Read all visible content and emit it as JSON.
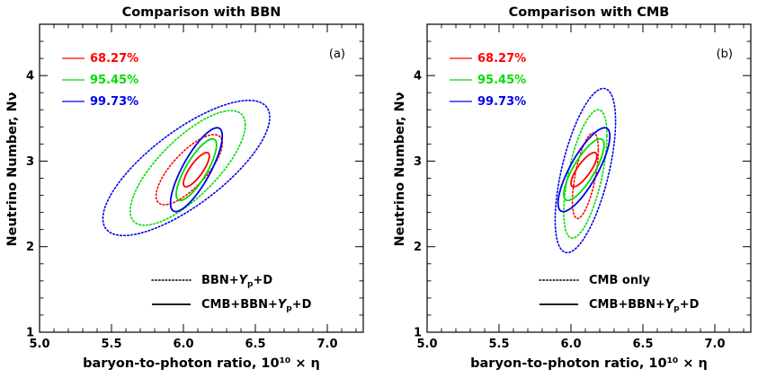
{
  "chart_data": [
    {
      "type": "contour",
      "title": "Comparison with BBN",
      "panel_label": "(a)",
      "xlabel": "baryon-to-photon ratio, 10¹⁰ × η",
      "ylabel": "Neutrino Number, Nν",
      "xlim": [
        5.0,
        7.25
      ],
      "ylim": [
        1.0,
        4.6
      ],
      "xticks": [
        5.0,
        5.5,
        6.0,
        6.5,
        7.0
      ],
      "xtick_labels": [
        "5.0",
        "5.5",
        "6.0",
        "6.5",
        "7.0"
      ],
      "yticks": [
        1,
        2,
        3,
        4
      ],
      "ytick_labels": [
        "1",
        "2",
        "3",
        "4"
      ],
      "confidence_legend": [
        {
          "label": "68.27%",
          "color": "#ff0000"
        },
        {
          "label": "95.45%",
          "color": "#00dd00"
        },
        {
          "label": "99.73%",
          "color": "#0000ee"
        }
      ],
      "style_legend": [
        {
          "label": "BBN+Yp+D",
          "style": "dotted"
        },
        {
          "label": "CMB+BBN+Yp+D",
          "style": "solid"
        }
      ],
      "series": [
        {
          "name": "BBN+Yp+D",
          "style": "dotted",
          "contours": [
            {
              "level": "68.27%",
              "color": "#ff0000",
              "cx": 6.04,
              "cy": 2.9,
              "x_halfwidth": 0.23,
              "y_halfwidth": 0.41,
              "corr": 0.75
            },
            {
              "level": "95.45%",
              "color": "#00dd00",
              "cx": 6.03,
              "cy": 2.92,
              "x_halfwidth": 0.4,
              "y_halfwidth": 0.67,
              "corr": 0.75
            },
            {
              "level": "99.73%",
              "color": "#0000ee",
              "cx": 6.02,
              "cy": 2.92,
              "x_halfwidth": 0.58,
              "y_halfwidth": 0.79,
              "corr": 0.75
            }
          ]
        },
        {
          "name": "CMB+BBN+Yp+D",
          "style": "solid",
          "contours": [
            {
              "level": "68.27%",
              "color": "#ff0000",
              "cx": 6.09,
              "cy": 2.9,
              "x_halfwidth": 0.09,
              "y_halfwidth": 0.2,
              "corr": 0.8
            },
            {
              "level": "95.45%",
              "color": "#00dd00",
              "cx": 6.09,
              "cy": 2.9,
              "x_halfwidth": 0.14,
              "y_halfwidth": 0.36,
              "corr": 0.8
            },
            {
              "level": "99.73%",
              "color": "#0000ee",
              "cx": 6.09,
              "cy": 2.9,
              "x_halfwidth": 0.18,
              "y_halfwidth": 0.49,
              "corr": 0.8
            }
          ]
        }
      ]
    },
    {
      "type": "contour",
      "title": "Comparison with CMB",
      "panel_label": "(b)",
      "xlabel": "baryon-to-photon ratio, 10¹⁰ × η",
      "ylabel": "Neutrino Number, Nν",
      "xlim": [
        5.0,
        7.25
      ],
      "ylim": [
        1.0,
        4.6
      ],
      "xticks": [
        5.0,
        5.5,
        6.0,
        6.5,
        7.0
      ],
      "xtick_labels": [
        "5.0",
        "5.5",
        "6.0",
        "6.5",
        "7.0"
      ],
      "yticks": [
        1,
        2,
        3,
        4
      ],
      "ytick_labels": [
        "1",
        "2",
        "3",
        "4"
      ],
      "confidence_legend": [
        {
          "label": "68.27%",
          "color": "#ff0000"
        },
        {
          "label": "95.45%",
          "color": "#00dd00"
        },
        {
          "label": "99.73%",
          "color": "#0000ee"
        }
      ],
      "style_legend": [
        {
          "label": "CMB only",
          "style": "dotted"
        },
        {
          "label": "CMB+BBN+Yp+D",
          "style": "solid"
        }
      ],
      "series": [
        {
          "name": "CMB only",
          "style": "dotted",
          "contours": [
            {
              "level": "68.27%",
              "color": "#ff0000",
              "cx": 6.1,
              "cy": 2.83,
              "x_halfwidth": 0.09,
              "y_halfwidth": 0.5,
              "corr": 0.6
            },
            {
              "level": "95.45%",
              "color": "#00dd00",
              "cx": 6.1,
              "cy": 2.85,
              "x_halfwidth": 0.15,
              "y_halfwidth": 0.75,
              "corr": 0.6
            },
            {
              "level": "99.73%",
              "color": "#0000ee",
              "cx": 6.1,
              "cy": 2.89,
              "x_halfwidth": 0.21,
              "y_halfwidth": 0.96,
              "corr": 0.6
            }
          ]
        },
        {
          "name": "CMB+BBN+Yp+D",
          "style": "solid",
          "contours": [
            {
              "level": "68.27%",
              "color": "#ff0000",
              "cx": 6.09,
              "cy": 2.9,
              "x_halfwidth": 0.09,
              "y_halfwidth": 0.2,
              "corr": 0.8
            },
            {
              "level": "95.45%",
              "color": "#00dd00",
              "cx": 6.09,
              "cy": 2.9,
              "x_halfwidth": 0.14,
              "y_halfwidth": 0.36,
              "corr": 0.8
            },
            {
              "level": "99.73%",
              "color": "#0000ee",
              "cx": 6.09,
              "cy": 2.9,
              "x_halfwidth": 0.18,
              "y_halfwidth": 0.49,
              "corr": 0.8
            }
          ]
        }
      ]
    }
  ]
}
